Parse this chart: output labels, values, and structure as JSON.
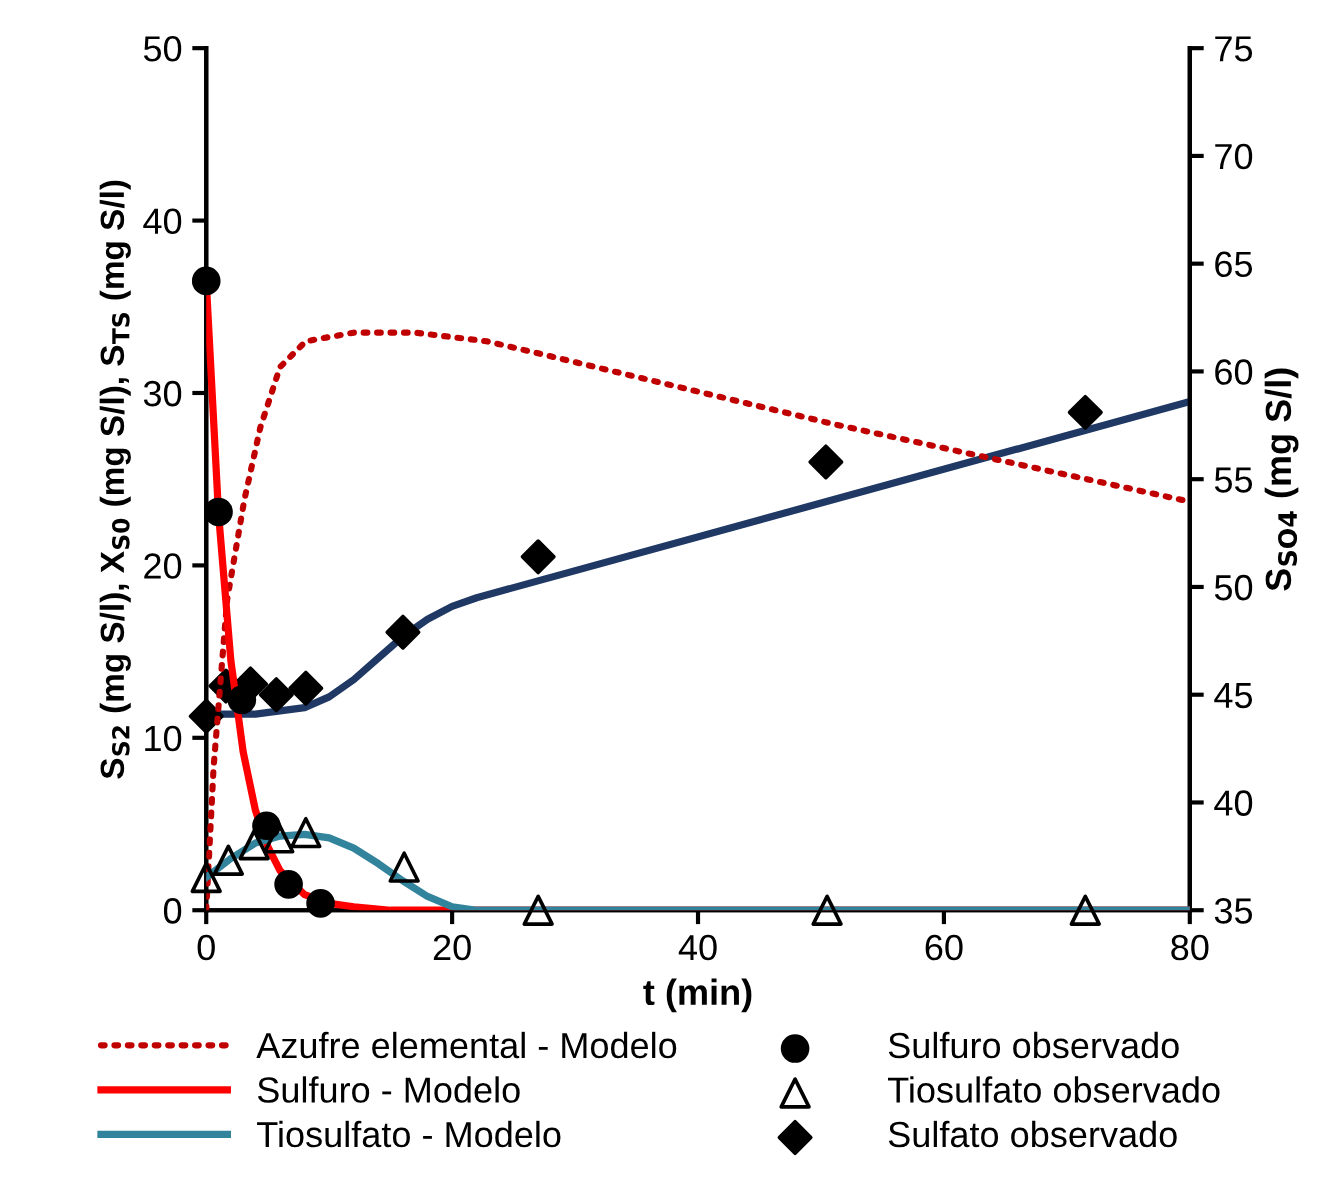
{
  "chart_data": {
    "type": "line",
    "xlabel": "t (min)",
    "ylabel": "S$_{S2}$ (mg S/l), X$_{S0}$ (mg S/l), S$_{TS}$ (mg S/l)",
    "y2label": "S$_{SO4}$ (mg S/l)",
    "xlim": [
      0,
      80
    ],
    "xticks": [
      0,
      20,
      40,
      60,
      80
    ],
    "ylim": [
      0,
      50
    ],
    "yticks": [
      0,
      10,
      20,
      30,
      40,
      50
    ],
    "y2lim": [
      35,
      75
    ],
    "y2ticks": [
      35,
      40,
      45,
      50,
      55,
      60,
      65,
      70,
      75
    ],
    "grid": false,
    "legend": "bottom",
    "series": [
      {
        "name": "Azufre elemental - Modelo",
        "line_style": "dotted",
        "marker": "none",
        "color": "#c00000",
        "x": [
          0,
          0.6,
          1.7,
          3.1,
          4.4,
          6,
          8.1,
          12,
          17,
          22.8,
          27,
          51,
          80
        ],
        "values": [
          0,
          8.3,
          18,
          23.8,
          28,
          31.5,
          33,
          33.5,
          33.5,
          33,
          32.3,
          28.2,
          23.7
        ]
      },
      {
        "name": "Sulfuro - Modelo",
        "line_style": "solid",
        "marker": "none",
        "color": "#ff0000",
        "x": [
          0,
          1,
          2,
          3,
          4,
          5,
          6,
          8,
          10,
          12,
          15,
          20,
          80
        ],
        "values": [
          36.5,
          23,
          14.5,
          9.2,
          5.8,
          3.7,
          2.3,
          0.9,
          0.4,
          0.2,
          0,
          0,
          0
        ]
      },
      {
        "name": "Tiosulfato - Modelo",
        "line_style": "solid",
        "marker": "none",
        "color": "#31849b",
        "x": [
          0,
          2,
          4,
          6,
          8,
          10,
          12,
          14,
          16,
          18,
          20,
          22,
          80
        ],
        "values": [
          1.9,
          3,
          3.9,
          4.3,
          4.4,
          4.2,
          3.6,
          2.7,
          1.7,
          0.8,
          0.2,
          0,
          0
        ]
      },
      {
        "name": "Sulfuro observado",
        "type": "scatter",
        "marker": "circle",
        "color": "#000000",
        "x": [
          0,
          1,
          2.9,
          4.9,
          6.7,
          9.3
        ],
        "values": [
          36.5,
          23.1,
          12.2,
          4.9,
          1.5,
          0.4
        ]
      },
      {
        "name": "Tiosulfato observado",
        "type": "scatter",
        "marker": "triangle",
        "color": "#000000",
        "x": [
          0,
          1.8,
          3.9,
          5.9,
          8.1,
          16.1,
          27,
          50.5,
          71.5
        ],
        "values": [
          1.9,
          2.9,
          3.8,
          4.2,
          4.5,
          2.5,
          0,
          0,
          0
        ]
      },
      {
        "name": "Sulfato observado",
        "type": "scatter",
        "marker": "diamond",
        "axis": "y2",
        "color": "#000000",
        "x": [
          0,
          1.6,
          3.6,
          5.7,
          8.1,
          16,
          27,
          50.4,
          71.5
        ],
        "values": [
          44.0,
          45.4,
          45.5,
          45.0,
          45.3,
          47.9,
          51.4,
          55.8,
          58.1
        ]
      },
      {
        "line_style": "solid",
        "marker": "none",
        "axis": "y2",
        "color": "#1f3864",
        "x": [
          0,
          4,
          8,
          10,
          12,
          14,
          16,
          18,
          20,
          22,
          80
        ],
        "values": [
          44.1,
          44.1,
          44.4,
          44.9,
          45.7,
          46.7,
          47.7,
          48.5,
          49.1,
          49.5,
          58.6
        ]
      }
    ]
  }
}
